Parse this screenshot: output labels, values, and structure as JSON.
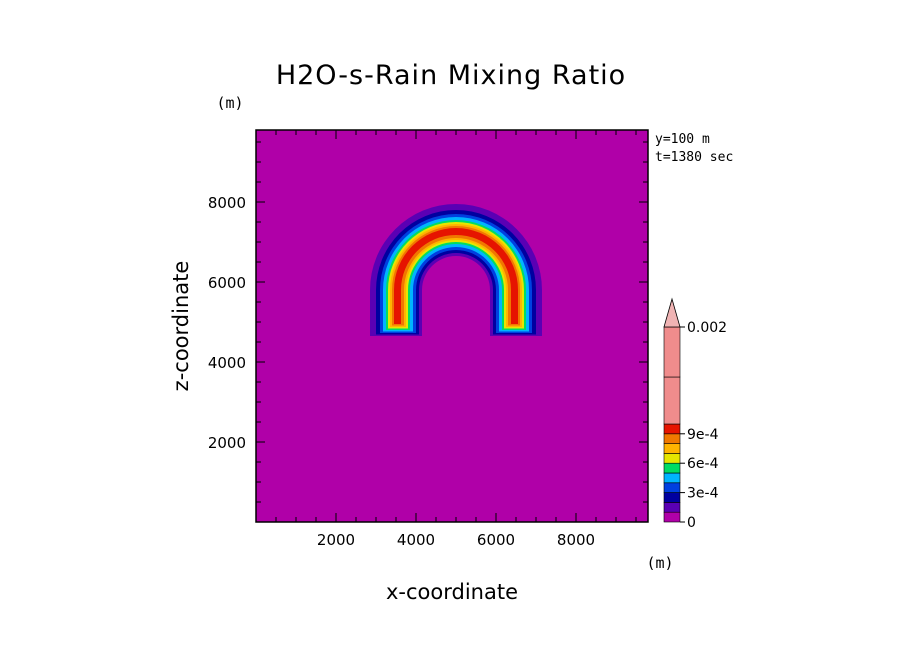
{
  "chart_data": {
    "type": "heatmap",
    "subtype": "filled-contour",
    "title": "H2O-s-Rain Mixing Ratio",
    "xlabel": "x-coordinate",
    "ylabel": "z-coordinate",
    "x_unit": "(m)",
    "y_unit": "(m)",
    "xlim": [
      0,
      9800
    ],
    "ylim": [
      0,
      9800
    ],
    "x_ticks": [
      2000,
      4000,
      6000,
      8000
    ],
    "y_ticks": [
      2000,
      4000,
      6000,
      8000
    ],
    "x_tick_labels": [
      "2000",
      "4000",
      "6000",
      "8000"
    ],
    "y_tick_labels": [
      "2000",
      "4000",
      "6000",
      "8000"
    ],
    "info_lines": [
      "y=100 m",
      "t=1380 sec"
    ],
    "background_color": "#b000a8",
    "colorbar": {
      "colors": [
        "#b000a8",
        "#5a00b4",
        "#0000a0",
        "#0040e0",
        "#00b4ff",
        "#00dc64",
        "#e6e600",
        "#ffb400",
        "#f07800",
        "#e61400",
        "#f08c8c",
        "#f0b4b4"
      ],
      "levels": [
        0,
        0.0001,
        0.0002,
        0.0003,
        0.0004,
        0.0005,
        0.0006,
        0.0007,
        0.0008,
        0.0009,
        0.001,
        0.002
      ],
      "tick_labels": [
        "0",
        "3e-4",
        "6e-4",
        "9e-4",
        "0.002"
      ],
      "extend": "max"
    },
    "field_structure": {
      "shape": "inverted-U rain shell",
      "center_x": 5000,
      "center_z": 5800,
      "outer_radius": 1900,
      "inner_radius": 1050,
      "leg_bottom_z": 4900,
      "peak_band_color": "#e61400"
    }
  }
}
